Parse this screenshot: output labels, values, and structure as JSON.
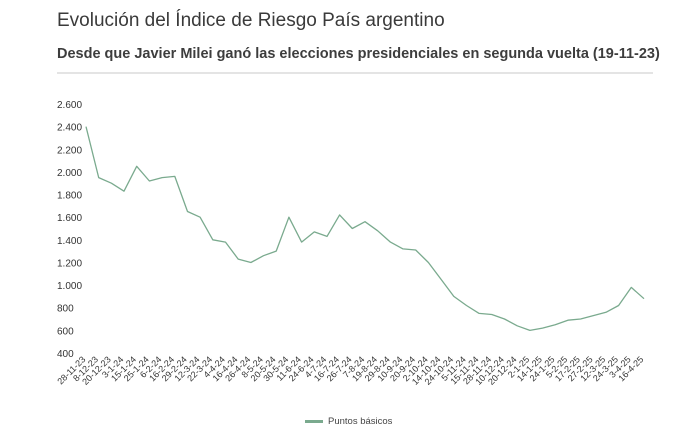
{
  "title": "Evolución del Índice de Riesgo País argentino",
  "subtitle": "Desde que Javier Milei ganó las elecciones presidenciales en segunda vuelta (19-11-23)",
  "chart_data": {
    "type": "line",
    "ylim": [
      400,
      2600
    ],
    "yticks": [
      400,
      600,
      800,
      1000,
      1200,
      1400,
      1600,
      1800,
      2000,
      2200,
      2400,
      2600
    ],
    "ytick_labels": [
      "400",
      "600",
      "800",
      "1.000",
      "1.200",
      "1.400",
      "1.600",
      "1.800",
      "2.000",
      "2.200",
      "2.400",
      "2.600"
    ],
    "grid": false,
    "legend_position": "bottom-center",
    "categories": [
      "28-11-23",
      "8-12-23",
      "20-12-23",
      "3-1-24",
      "15-1-24",
      "25-1-24",
      "6-2-24",
      "16-2-24",
      "29-2-24",
      "12-3-24",
      "22-3-24",
      "4-4-24",
      "16-4-24",
      "26-4-24",
      "8-5-24",
      "20-5-24",
      "30-5-24",
      "11-6-24",
      "24-6-24",
      "4-7-24",
      "16-7-24",
      "26-7-24",
      "7-8-24",
      "19-8-24",
      "29-8-24",
      "10-9-24",
      "20-9-24",
      "2-10-24",
      "14-10-24",
      "24-10-24",
      "5-11-24",
      "15-11-24",
      "28-11-24",
      "10-12-24",
      "20-12-24",
      "2-1-25",
      "14-1-25",
      "24-1-25",
      "5-2-25",
      "17-2-25",
      "27-2-25",
      "12-3-25",
      "24-3-25",
      "3-4-25",
      "16-4-25"
    ],
    "series": [
      {
        "name": "Puntos básicos",
        "color": "#7aaa8e",
        "values": [
          2400,
          1950,
          1900,
          1830,
          2050,
          1920,
          1950,
          1960,
          1650,
          1600,
          1400,
          1380,
          1230,
          1200,
          1260,
          1300,
          1600,
          1380,
          1470,
          1430,
          1620,
          1500,
          1560,
          1480,
          1380,
          1320,
          1310,
          1200,
          1050,
          900,
          820,
          750,
          740,
          700,
          640,
          600,
          620,
          650,
          690,
          700,
          730,
          760,
          820,
          980,
          880
        ]
      }
    ]
  }
}
